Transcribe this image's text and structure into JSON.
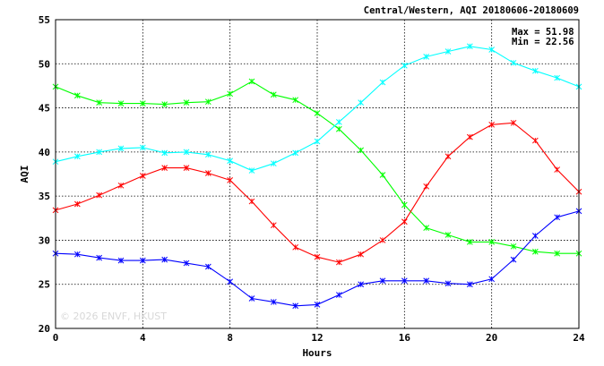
{
  "chart_data": {
    "type": "line",
    "title": "Central/Western, AQI 20180606-20180609",
    "xlabel": "Hours",
    "ylabel": "AQI",
    "xlim": [
      0,
      24
    ],
    "ylim": [
      20,
      55
    ],
    "x_ticks": [
      0,
      4,
      8,
      12,
      16,
      20,
      24
    ],
    "y_ticks": [
      20,
      25,
      30,
      35,
      40,
      45,
      50,
      55
    ],
    "grid": true,
    "stats": {
      "max_label": "Max = 51.98",
      "min_label": "Min = 22.56"
    },
    "watermark": "© 2026 ENVF, HKUST",
    "x": [
      0,
      1,
      2,
      3,
      4,
      5,
      6,
      7,
      8,
      9,
      10,
      11,
      12,
      13,
      14,
      15,
      16,
      17,
      18,
      19,
      20,
      21,
      22,
      23,
      24
    ],
    "series": [
      {
        "color": "#00ff00",
        "values": [
          47.4,
          46.4,
          45.6,
          45.5,
          45.5,
          45.4,
          45.6,
          45.7,
          46.6,
          48.0,
          46.5,
          45.9,
          44.4,
          42.6,
          40.2,
          37.4,
          34.0,
          31.4,
          30.6,
          29.8,
          29.8,
          29.3,
          28.7,
          28.5,
          28.5
        ]
      },
      {
        "color": "#00ffff",
        "values": [
          38.9,
          39.5,
          40.0,
          40.4,
          40.5,
          39.9,
          40.0,
          39.7,
          39.0,
          37.9,
          38.7,
          39.9,
          41.2,
          43.4,
          45.6,
          47.9,
          49.8,
          50.8,
          51.4,
          51.98,
          51.6,
          50.1,
          49.2,
          48.4,
          47.4
        ]
      },
      {
        "color": "#ff0000",
        "values": [
          33.4,
          34.1,
          35.1,
          36.2,
          37.3,
          38.2,
          38.2,
          37.6,
          36.8,
          34.4,
          31.7,
          29.2,
          28.1,
          27.5,
          28.4,
          30.0,
          32.1,
          36.1,
          39.5,
          41.7,
          43.1,
          43.3,
          41.3,
          38.0,
          35.5
        ]
      },
      {
        "color": "#0000ff",
        "values": [
          28.5,
          28.4,
          28.0,
          27.7,
          27.7,
          27.8,
          27.4,
          27.0,
          25.3,
          23.4,
          23.0,
          22.56,
          22.7,
          23.8,
          25.0,
          25.4,
          25.4,
          25.4,
          25.1,
          25.0,
          25.6,
          27.8,
          30.5,
          32.6,
          33.3
        ]
      }
    ]
  }
}
